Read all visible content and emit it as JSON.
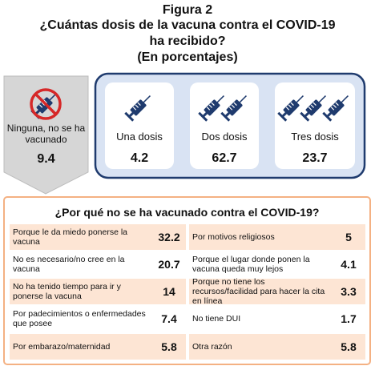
{
  "figure_label": "Figura 2",
  "title_lines": [
    "¿Cuántas dosis de la vacuna contra el COVID-19",
    "ha  recibido?",
    "(En porcentajes)"
  ],
  "none": {
    "label": "Ninguna, no se ha vacunado",
    "value": 9.4
  },
  "doses": [
    {
      "label": "Una dosis",
      "value": 4.2
    },
    {
      "label": "Dos dosis",
      "value": 62.7
    },
    {
      "label": "Tres dosis",
      "value": 23.7
    }
  ],
  "reasons": {
    "title": "¿Por qué no se ha vacunado contra el COVID-19?",
    "left": [
      {
        "label": "Porque le da miedo ponerse la vacuna",
        "value": 32.2
      },
      {
        "label": "No es necesario/no cree en la vacuna",
        "value": 20.7
      },
      {
        "label": "No ha tenido tiempo para ir y ponerse la vacuna",
        "value": 14
      },
      {
        "label": "Por padecimientos o enfermedades que posee",
        "value": 7.4
      },
      {
        "label": "Por embarazo/maternidad",
        "value": 5.8
      }
    ],
    "right": [
      {
        "label": "Por motivos religiosos",
        "value": 5
      },
      {
        "label": "Porque el lugar donde ponen la vacuna queda muy lejos",
        "value": 4.1
      },
      {
        "label": "Porque no tiene los recursos/facilidad para hacer la cita en línea",
        "value": 3.3
      },
      {
        "label": "No tiene DUI",
        "value": 1.7
      },
      {
        "label": "Otra razón",
        "value": 5.8
      }
    ]
  }
}
